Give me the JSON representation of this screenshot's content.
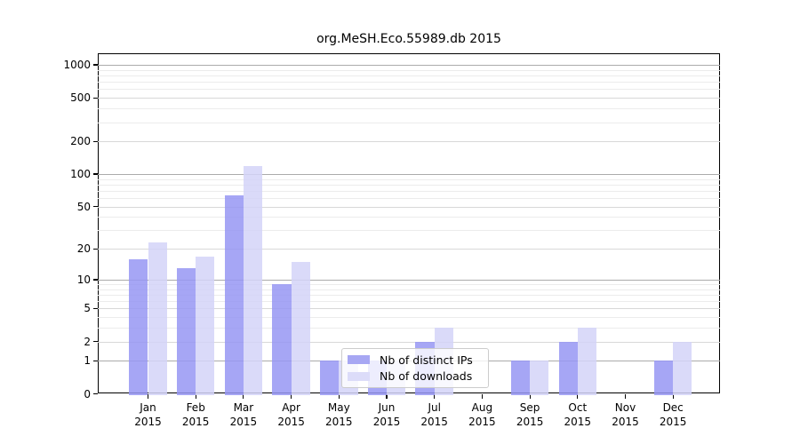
{
  "title": "org.MeSH.Eco.55989.db 2015",
  "chart_data": {
    "type": "bar",
    "title": "org.MeSH.Eco.55989.db 2015",
    "categories": [
      "Jan 2015",
      "Feb 2015",
      "Mar 2015",
      "Apr 2015",
      "May 2015",
      "Jun 2015",
      "Jul 2015",
      "Aug 2015",
      "Sep 2015",
      "Oct 2015",
      "Nov 2015",
      "Dec 2015"
    ],
    "month_labels": [
      "Jan",
      "Feb",
      "Mar",
      "Apr",
      "May",
      "Jun",
      "Jul",
      "Aug",
      "Sep",
      "Oct",
      "Nov",
      "Dec"
    ],
    "year_label": "2015",
    "series": [
      {
        "name": "Nb of distinct IPs",
        "color": "#9999f4",
        "values": [
          16,
          13,
          64,
          9,
          1,
          1,
          2,
          0,
          1,
          2,
          0,
          1
        ]
      },
      {
        "name": "Nb of downloads",
        "color": "#d5d5f8",
        "values": [
          23,
          17,
          119,
          15,
          1,
          1,
          3,
          0,
          1,
          3,
          0,
          2
        ]
      }
    ],
    "xlabel": "",
    "ylabel": "",
    "yscale": "log1p",
    "yticks": [
      0,
      1,
      2,
      5,
      10,
      20,
      50,
      100,
      200,
      500,
      1000
    ],
    "minor_yticks": [
      3,
      4,
      6,
      7,
      8,
      9,
      30,
      40,
      60,
      70,
      80,
      90,
      300,
      400,
      600,
      700,
      800,
      900
    ],
    "ylim": [
      0,
      1285
    ],
    "grid": true,
    "legend_position": "lower center inside"
  },
  "legend": {
    "items": [
      {
        "label": "Nb of distinct IPs",
        "swatch_color": "#a7a7f3"
      },
      {
        "label": "Nb of downloads",
        "swatch_color": "#dcdcf9"
      }
    ]
  },
  "colors": {
    "bar_distinct_ips": "rgba(150,150,243,0.85)",
    "bar_downloads": "rgba(212,212,248,0.85)",
    "grid_major": "#ababab",
    "grid_mid": "#d8d8d8",
    "grid_minor": "#ececec",
    "axis": "#000000",
    "background": "#ffffff"
  }
}
